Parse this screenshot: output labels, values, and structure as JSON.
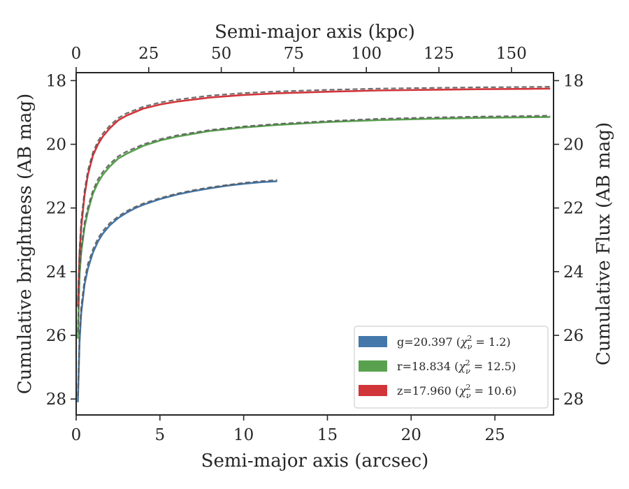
{
  "chart_data": {
    "type": "line",
    "x_bottom": {
      "label": "Semi-major axis (arcsec)",
      "range": [
        0,
        28.5
      ],
      "ticks": [
        0,
        5,
        10,
        15,
        20,
        25
      ]
    },
    "x_top": {
      "label": "Semi-major axis (kpc)",
      "range": [
        0,
        164.5
      ],
      "ticks": [
        0,
        25,
        50,
        75,
        100,
        125,
        150
      ]
    },
    "y_left": {
      "label": "Cumulative brightness (AB mag)",
      "range": [
        28.5,
        17.75
      ],
      "ticks": [
        18,
        20,
        22,
        24,
        26,
        28
      ]
    },
    "y_right": {
      "label": "Cumulative Flux (AB mag)",
      "range": [
        28.5,
        17.75
      ],
      "ticks": [
        18,
        20,
        22,
        24,
        26,
        28
      ]
    },
    "grid": false,
    "legend": {
      "position": "lower-right",
      "entries": [
        {
          "prefix": "g=20.397 (",
          "chi_text": "χ",
          "chi_sub": "ν",
          "chi_sup": "2",
          "suffix": " = 1.2)",
          "color": "#4477aa"
        },
        {
          "prefix": "r=18.834 (",
          "chi_text": "χ",
          "chi_sub": "ν",
          "chi_sup": "2",
          "suffix": " = 12.5)",
          "color": "#59a14f"
        },
        {
          "prefix": "z=17.960 (",
          "chi_text": "χ",
          "chi_sub": "ν",
          "chi_sup": "2",
          "suffix": " = 10.6)",
          "color": "#d1353a"
        }
      ]
    },
    "series": [
      {
        "name": "g",
        "color": "#4477aa",
        "x": [
          0.1,
          0.2,
          0.3,
          0.5,
          0.7,
          1.0,
          1.3,
          1.6,
          2.0,
          2.5,
          3.0,
          3.5,
          4.0,
          5.0,
          6.0,
          7.0,
          8.0,
          9.0,
          10.0,
          11.0,
          12.0
        ],
        "y": [
          28.1,
          26.2,
          25.3,
          24.4,
          23.9,
          23.4,
          23.05,
          22.8,
          22.55,
          22.32,
          22.15,
          22.01,
          21.9,
          21.72,
          21.58,
          21.47,
          21.38,
          21.3,
          21.24,
          21.19,
          21.16
        ]
      },
      {
        "name": "r",
        "color": "#59a14f",
        "x": [
          0.1,
          0.2,
          0.3,
          0.5,
          0.7,
          1.0,
          1.3,
          1.6,
          2.0,
          2.5,
          3.0,
          4.0,
          5.0,
          6.0,
          8.0,
          10.0,
          12.0,
          15.0,
          18.0,
          21.0,
          24.0,
          27.0,
          28.3
        ],
        "y": [
          26.1,
          24.1,
          23.4,
          22.6,
          22.1,
          21.55,
          21.2,
          20.95,
          20.7,
          20.45,
          20.3,
          20.05,
          19.88,
          19.76,
          19.58,
          19.47,
          19.39,
          19.3,
          19.24,
          19.2,
          19.17,
          19.15,
          19.14
        ]
      },
      {
        "name": "z",
        "color": "#d1353a",
        "x": [
          0.1,
          0.2,
          0.3,
          0.5,
          0.7,
          1.0,
          1.3,
          1.6,
          2.0,
          2.5,
          3.0,
          4.0,
          5.0,
          6.0,
          8.0,
          10.0,
          12.0,
          15.0,
          18.0,
          21.0,
          24.0,
          27.0,
          28.3
        ],
        "y": [
          25.1,
          23.5,
          22.6,
          21.6,
          20.95,
          20.35,
          20.0,
          19.75,
          19.5,
          19.25,
          19.1,
          18.88,
          18.75,
          18.66,
          18.53,
          18.45,
          18.4,
          18.35,
          18.31,
          18.29,
          18.27,
          18.26,
          18.25
        ]
      }
    ],
    "model_fits": [
      {
        "for": "g",
        "style": "dashed",
        "color": "#555555",
        "x": [
          0.1,
          0.2,
          0.3,
          0.5,
          0.7,
          1.0,
          1.3,
          1.6,
          2.0,
          2.5,
          3.0,
          3.5,
          4.0,
          5.0,
          6.0,
          7.0,
          8.0,
          9.0,
          10.0,
          11.0,
          12.0
        ],
        "y": [
          27.9,
          26.0,
          25.1,
          24.25,
          23.75,
          23.3,
          22.95,
          22.72,
          22.48,
          22.27,
          22.1,
          21.97,
          21.86,
          21.69,
          21.55,
          21.44,
          21.35,
          21.28,
          21.21,
          21.16,
          21.12
        ]
      },
      {
        "for": "r",
        "style": "dashed",
        "color": "#555555",
        "x": [
          0.1,
          0.2,
          0.3,
          0.5,
          0.7,
          1.0,
          1.3,
          1.6,
          2.0,
          2.5,
          3.0,
          4.0,
          5.0,
          6.0,
          8.0,
          10.0,
          12.0,
          15.0,
          18.0,
          21.0,
          24.0,
          27.0,
          28.3
        ],
        "y": [
          25.9,
          23.95,
          23.25,
          22.45,
          21.98,
          21.45,
          21.1,
          20.86,
          20.62,
          20.38,
          20.23,
          20.0,
          19.84,
          19.72,
          19.55,
          19.44,
          19.36,
          19.27,
          19.2,
          19.16,
          19.13,
          19.11,
          19.1
        ]
      },
      {
        "for": "z",
        "style": "dashed",
        "color": "#555555",
        "x": [
          0.1,
          0.2,
          0.3,
          0.5,
          0.7,
          1.0,
          1.3,
          1.6,
          2.0,
          2.5,
          3.0,
          4.0,
          5.0,
          6.0,
          8.0,
          10.0,
          12.0,
          15.0,
          18.0,
          21.0,
          24.0,
          27.0,
          28.3
        ],
        "y": [
          24.9,
          23.3,
          22.4,
          21.45,
          20.82,
          20.25,
          19.9,
          19.66,
          19.42,
          19.18,
          19.03,
          18.82,
          18.69,
          18.6,
          18.47,
          18.39,
          18.34,
          18.29,
          18.25,
          18.23,
          18.21,
          18.2,
          18.19
        ]
      }
    ]
  }
}
